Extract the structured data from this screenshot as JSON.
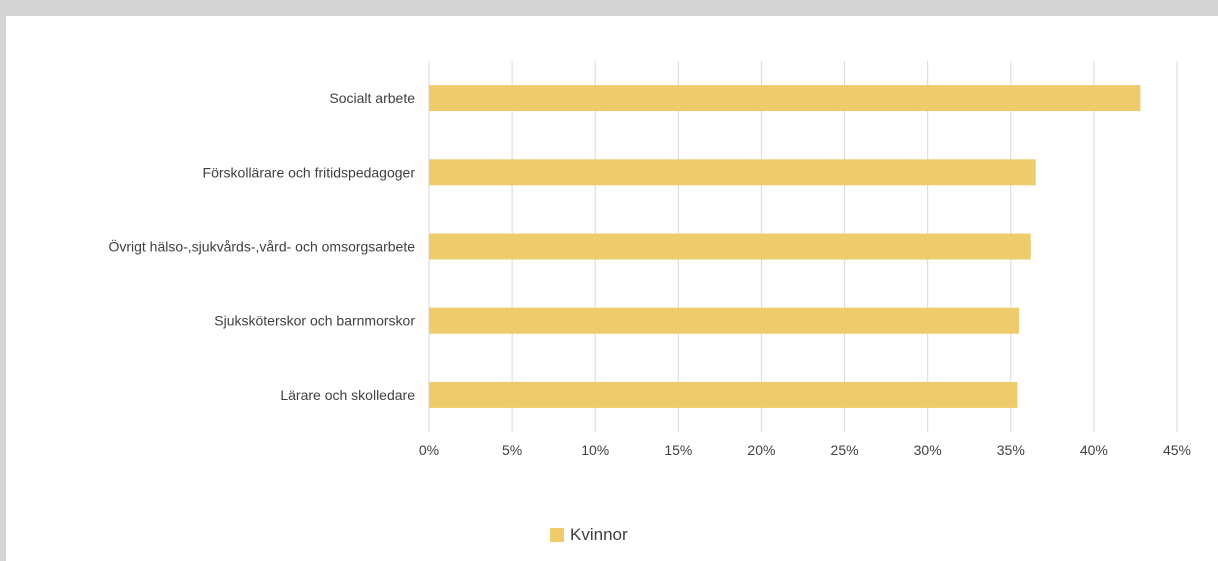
{
  "chart_data": {
    "type": "bar",
    "orientation": "horizontal",
    "categories": [
      "Socialt arbete",
      "Förskollärare och fritidspedagoger",
      "Övrigt hälso-,sjukvårds-,vård- och omsorgsarbete",
      "Sjuksköterskor och barnmorskor",
      "Lärare och skolledare"
    ],
    "series": [
      {
        "name": "Kvinnor",
        "color": "#eecb6b",
        "values": [
          0.428,
          0.365,
          0.362,
          0.355,
          0.354
        ]
      }
    ],
    "xlim": [
      0,
      0.45
    ],
    "xticks": [
      0,
      0.05,
      0.1,
      0.15,
      0.2,
      0.25,
      0.3,
      0.35,
      0.4,
      0.45
    ],
    "xtick_labels": [
      "0%",
      "5%",
      "10%",
      "15%",
      "20%",
      "25%",
      "30%",
      "35%",
      "40%",
      "45%"
    ],
    "grid": true,
    "legend_position": "bottom",
    "title": "",
    "xlabel": "",
    "ylabel": ""
  },
  "colors": {
    "gridline": "#d9d9d9",
    "text": "#404040"
  }
}
